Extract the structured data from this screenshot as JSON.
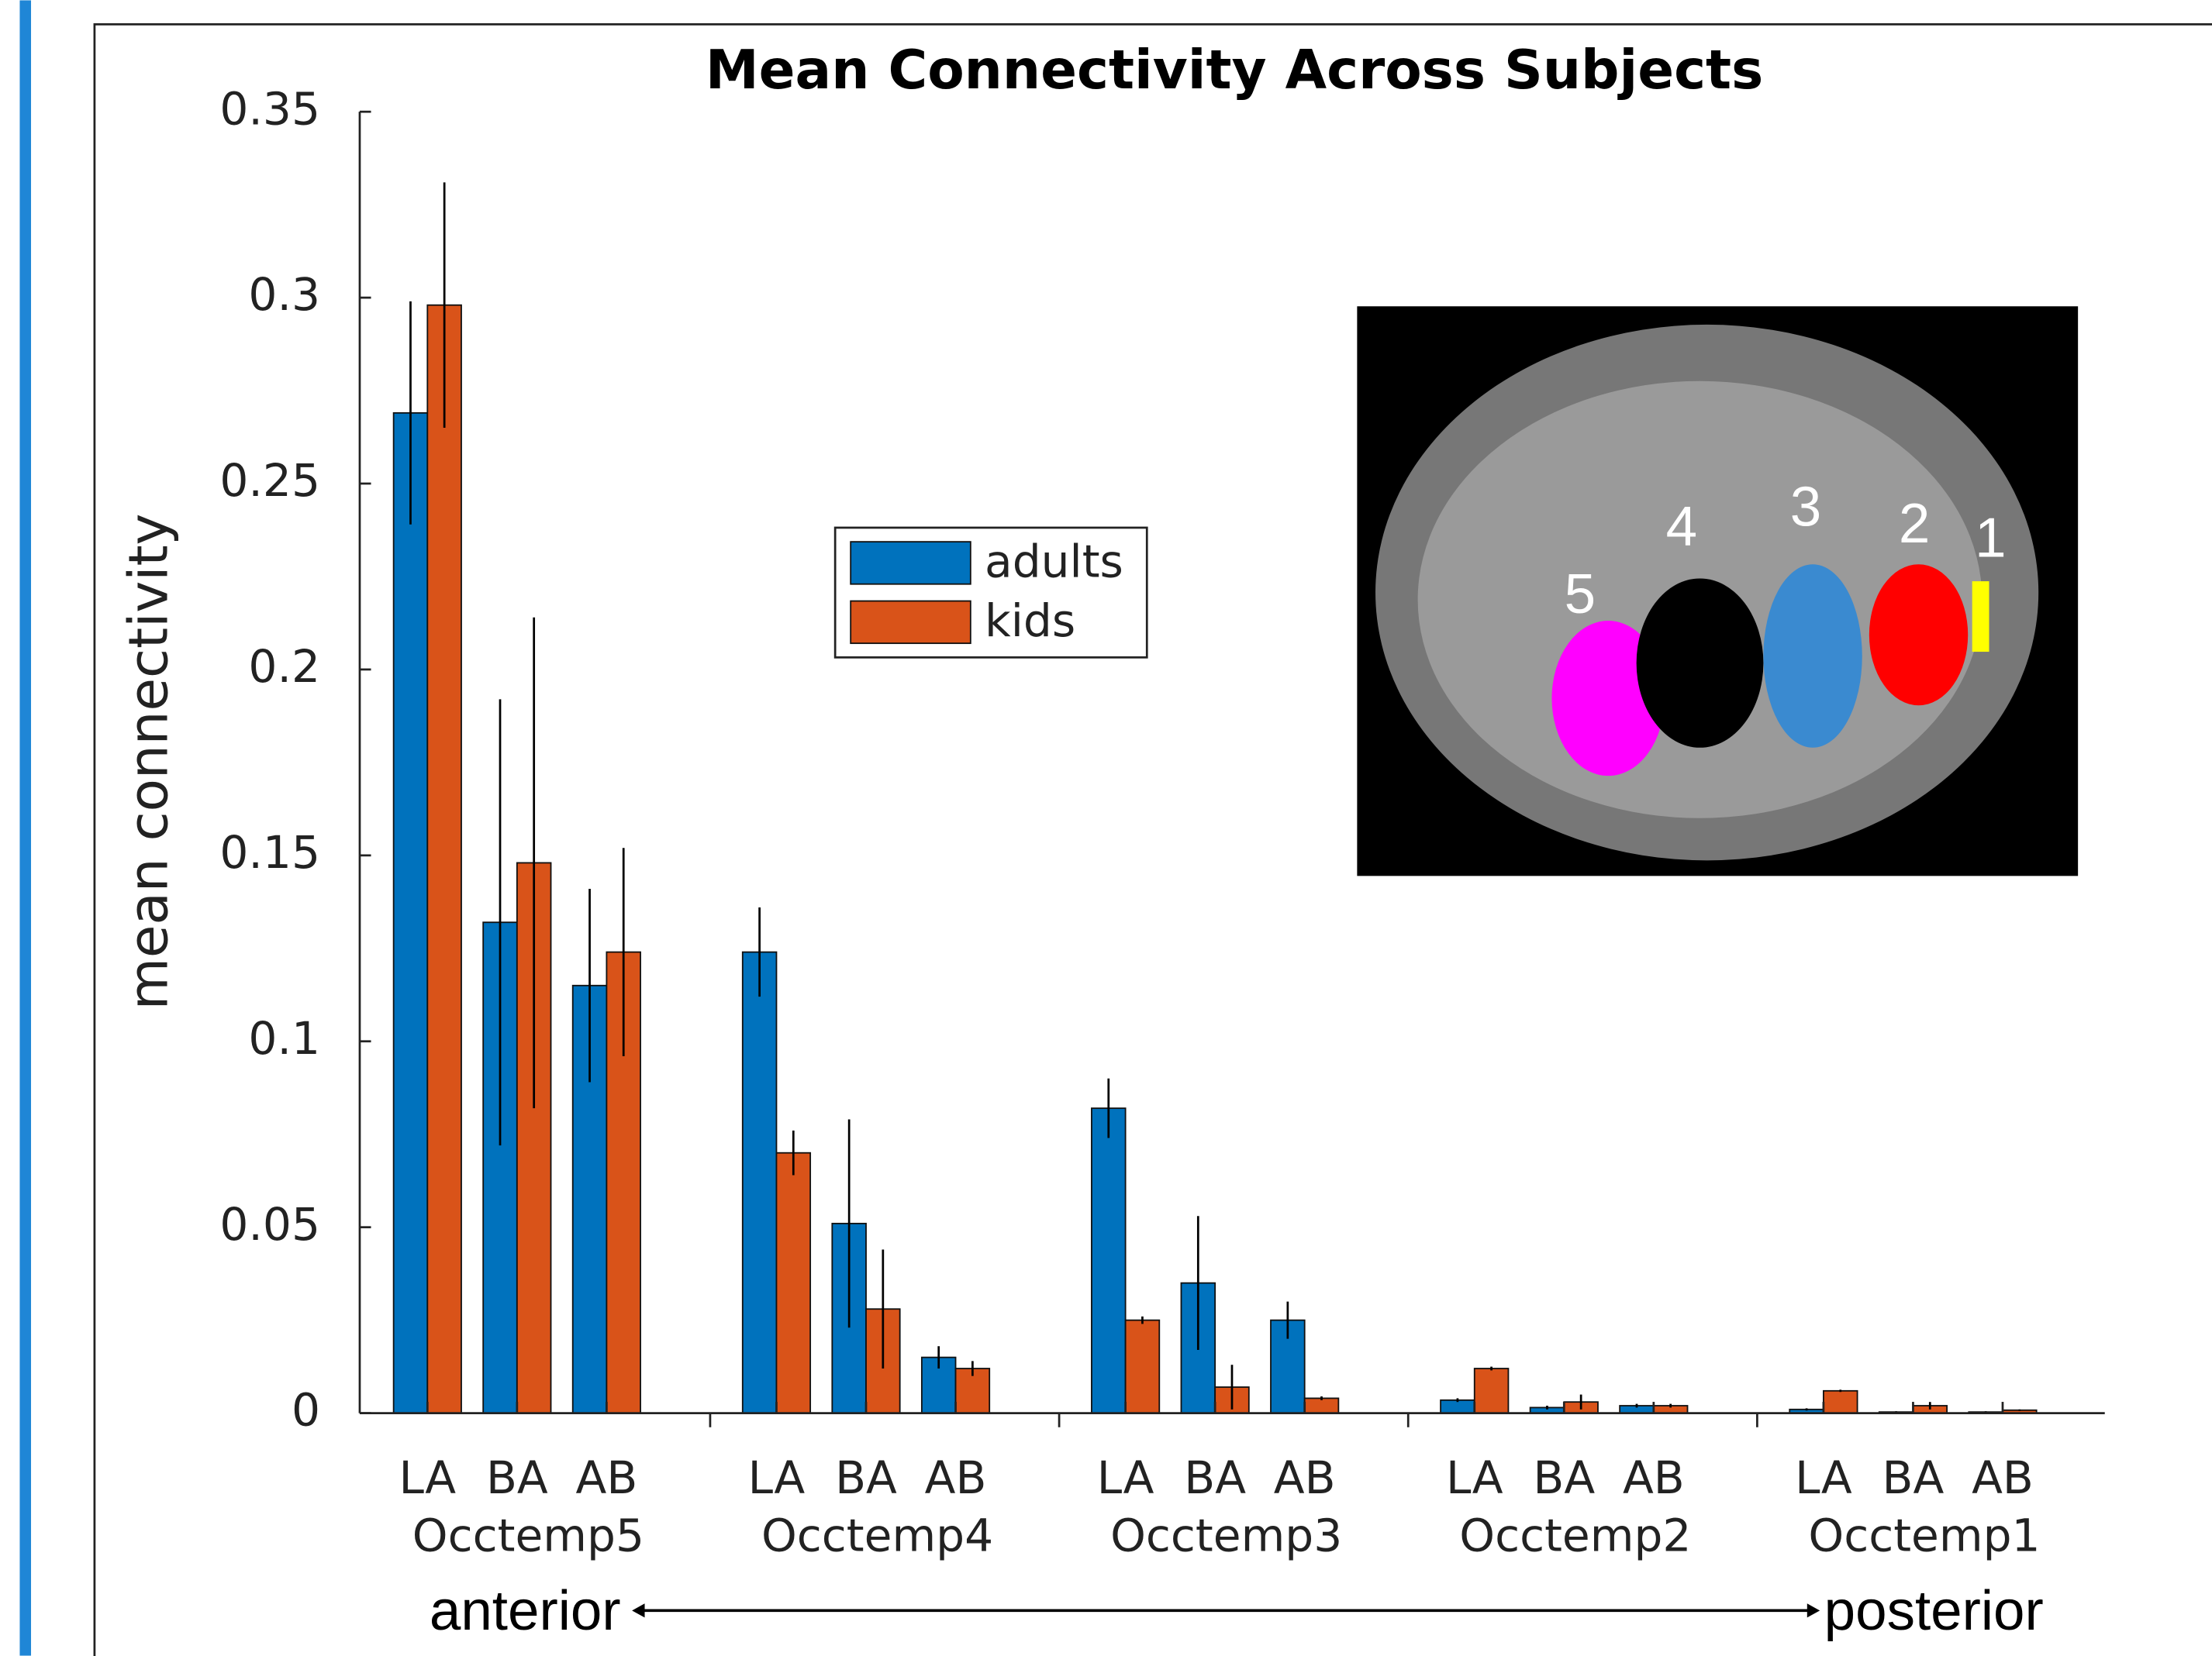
{
  "chart_data": {
    "type": "bar",
    "title": "Mean Connectivity Across Subjects",
    "y_label": "mean connectivity",
    "groups": [
      "Occtemp5",
      "Occtemp4",
      "Occtemp3",
      "Occtemp2",
      "Occtemp1"
    ],
    "categories": [
      "LA",
      "BA",
      "AB",
      "LA",
      "BA",
      "AB",
      "LA",
      "BA",
      "AB",
      "LA",
      "BA",
      "AB",
      "LA",
      "BA",
      "AB"
    ],
    "series": [
      {
        "name": "adults",
        "color": "#0072bd",
        "values": [
          0.269,
          0.132,
          0.115,
          0.124,
          0.051,
          0.015,
          0.082,
          0.035,
          0.025,
          0.0035,
          0.0015,
          0.002,
          0.001,
          0.0003,
          0.0003
        ],
        "errors": [
          0.03,
          0.06,
          0.026,
          0.012,
          0.028,
          0.003,
          0.008,
          0.018,
          0.005,
          0.0005,
          0.0005,
          0.0005,
          0.0003,
          0.0002,
          0.0002
        ]
      },
      {
        "name": "kids",
        "color": "#d95319",
        "values": [
          0.298,
          0.148,
          0.124,
          0.07,
          0.028,
          0.012,
          0.025,
          0.007,
          0.004,
          0.012,
          0.003,
          0.002,
          0.006,
          0.002,
          0.0008
        ],
        "errors": [
          0.033,
          0.066,
          0.028,
          0.006,
          0.016,
          0.002,
          0.001,
          0.006,
          0.0005,
          0.0005,
          0.002,
          0.0005,
          0.0003,
          0.001,
          0.0002
        ]
      }
    ],
    "ylim": [
      0,
      0.35
    ],
    "yticks": [
      0,
      0.05,
      0.1,
      0.15,
      0.2,
      0.25,
      0.3,
      0.35
    ],
    "legend": "upper-center",
    "annotations": {
      "left": "anterior",
      "right": "posterior"
    },
    "inset": {
      "labels": [
        "5",
        "4",
        "3",
        "2",
        "1"
      ]
    }
  }
}
